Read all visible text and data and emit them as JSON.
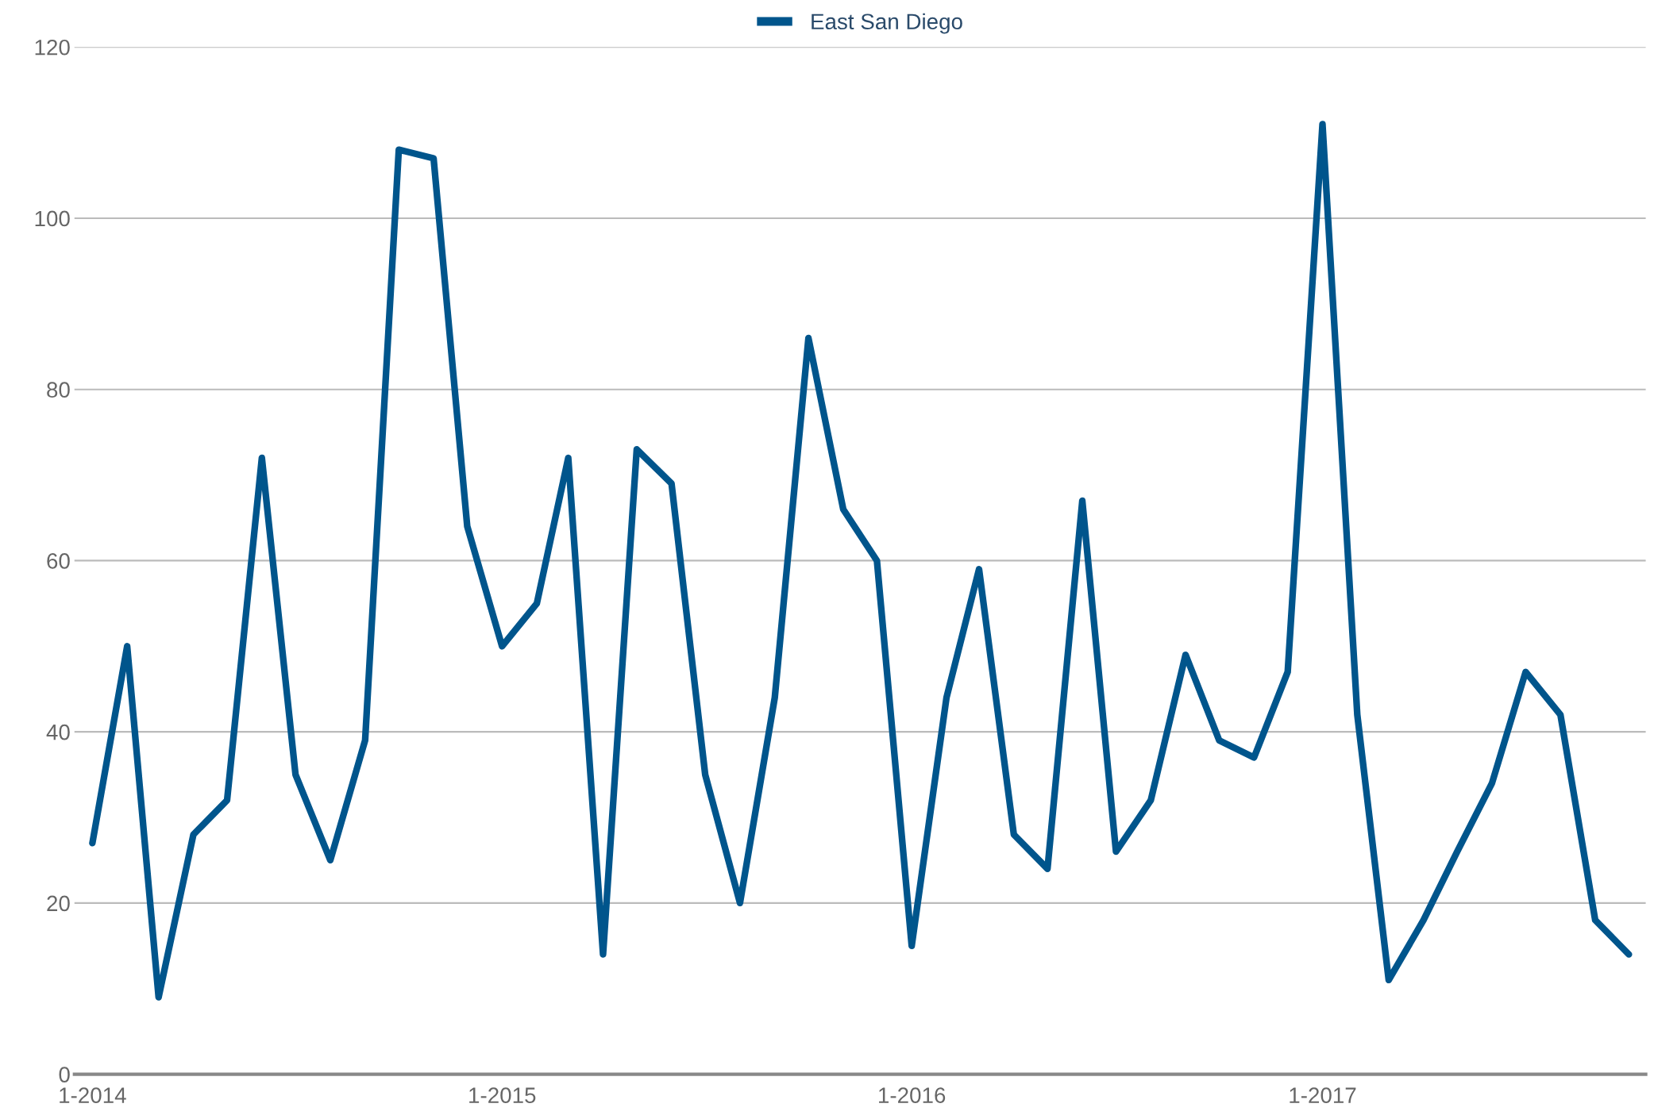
{
  "chart_data": {
    "type": "line",
    "x": [
      "2014-01",
      "2014-02",
      "2014-03",
      "2014-04",
      "2014-05",
      "2014-06",
      "2014-07",
      "2014-08",
      "2014-09",
      "2014-10",
      "2014-11",
      "2014-12",
      "2015-01",
      "2015-02",
      "2015-03",
      "2015-04",
      "2015-05",
      "2015-06",
      "2015-07",
      "2015-08",
      "2015-09",
      "2015-10",
      "2015-11",
      "2015-12",
      "2016-01",
      "2016-02",
      "2016-03",
      "2016-04",
      "2016-05",
      "2016-06",
      "2016-07",
      "2016-08",
      "2016-09",
      "2016-10",
      "2016-11",
      "2016-12",
      "2017-01",
      "2017-02",
      "2017-03",
      "2017-04",
      "2017-05",
      "2017-06",
      "2017-07",
      "2017-08",
      "2017-09",
      "2017-10"
    ],
    "series": [
      {
        "name": "East San Diego",
        "color": "#00558c",
        "values": [
          27,
          50,
          9,
          28,
          32,
          72,
          35,
          25,
          39,
          108,
          107,
          64,
          50,
          55,
          72,
          14,
          73,
          69,
          35,
          20,
          44,
          86,
          66,
          60,
          15,
          44,
          59,
          28,
          24,
          67,
          26,
          32,
          49,
          39,
          37,
          47,
          111,
          42,
          11,
          18,
          26,
          34,
          47,
          42,
          18,
          14
        ]
      }
    ],
    "xlim": [
      "2013-12-16",
      "2017-10-16"
    ],
    "xticks": [
      {
        "value": "2014-01",
        "label": "1-2014"
      },
      {
        "value": "2015-01",
        "label": "1-2015"
      },
      {
        "value": "2016-01",
        "label": "1-2016"
      },
      {
        "value": "2017-01",
        "label": "1-2017"
      }
    ],
    "ylim": [
      0,
      120
    ],
    "yticks": [
      0,
      20,
      40,
      60,
      80,
      100,
      120
    ],
    "grid": "y",
    "legend": "top",
    "line_style": "solid",
    "marker": "none"
  }
}
